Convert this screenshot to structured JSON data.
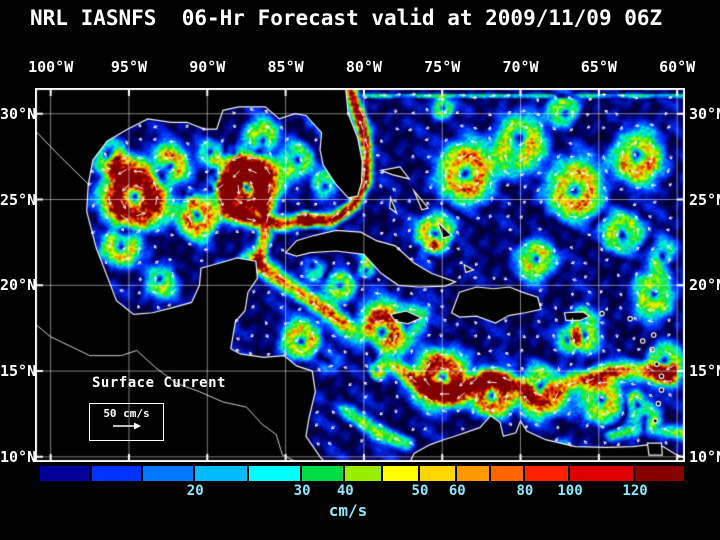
{
  "title": "NRL IASNFS  06-Hr Forecast valid at 2009/11/09 06Z",
  "map": {
    "x_axis_labels": [
      "100°W",
      "95°W",
      "90°W",
      "85°W",
      "80°W",
      "75°W",
      "70°W",
      "65°W",
      "60°W"
    ],
    "y_axis_labels": [
      "30°N",
      "25°N",
      "20°N",
      "15°N",
      "10°N"
    ],
    "annotation": "Surface Current",
    "scale_label": "50 cm/s"
  },
  "colorbar": {
    "units": "cm/s",
    "ticks": [
      {
        "label": "20",
        "pct": 24.1
      },
      {
        "label": "30",
        "pct": 40.7
      },
      {
        "label": "40",
        "pct": 47.4
      },
      {
        "label": "50",
        "pct": 59.0
      },
      {
        "label": "60",
        "pct": 64.8
      },
      {
        "label": "80",
        "pct": 75.3
      },
      {
        "label": "100",
        "pct": 82.3
      },
      {
        "label": "120",
        "pct": 92.4
      }
    ],
    "segments": [
      {
        "width_pct": 8.0,
        "color": "#000099"
      },
      {
        "width_pct": 8.0,
        "color": "#0033FF"
      },
      {
        "width_pct": 8.1,
        "color": "#0077FF"
      },
      {
        "width_pct": 8.3,
        "color": "#00BBFF"
      },
      {
        "width_pct": 8.3,
        "color": "#00FFFF"
      },
      {
        "width_pct": 6.7,
        "color": "#00DD44"
      },
      {
        "width_pct": 5.8,
        "color": "#99EE00"
      },
      {
        "width_pct": 5.8,
        "color": "#FFFF00"
      },
      {
        "width_pct": 5.8,
        "color": "#FFD500"
      },
      {
        "width_pct": 5.2,
        "color": "#FF9900"
      },
      {
        "width_pct": 5.3,
        "color": "#FF6600"
      },
      {
        "width_pct": 7.0,
        "color": "#FF2200"
      },
      {
        "width_pct": 10.1,
        "color": "#DD0000"
      },
      {
        "width_pct": 7.6,
        "color": "#880000"
      }
    ],
    "label_color": "#8FE9FF"
  },
  "colors": {
    "background": "#000000",
    "text": "#FFFFFF"
  }
}
